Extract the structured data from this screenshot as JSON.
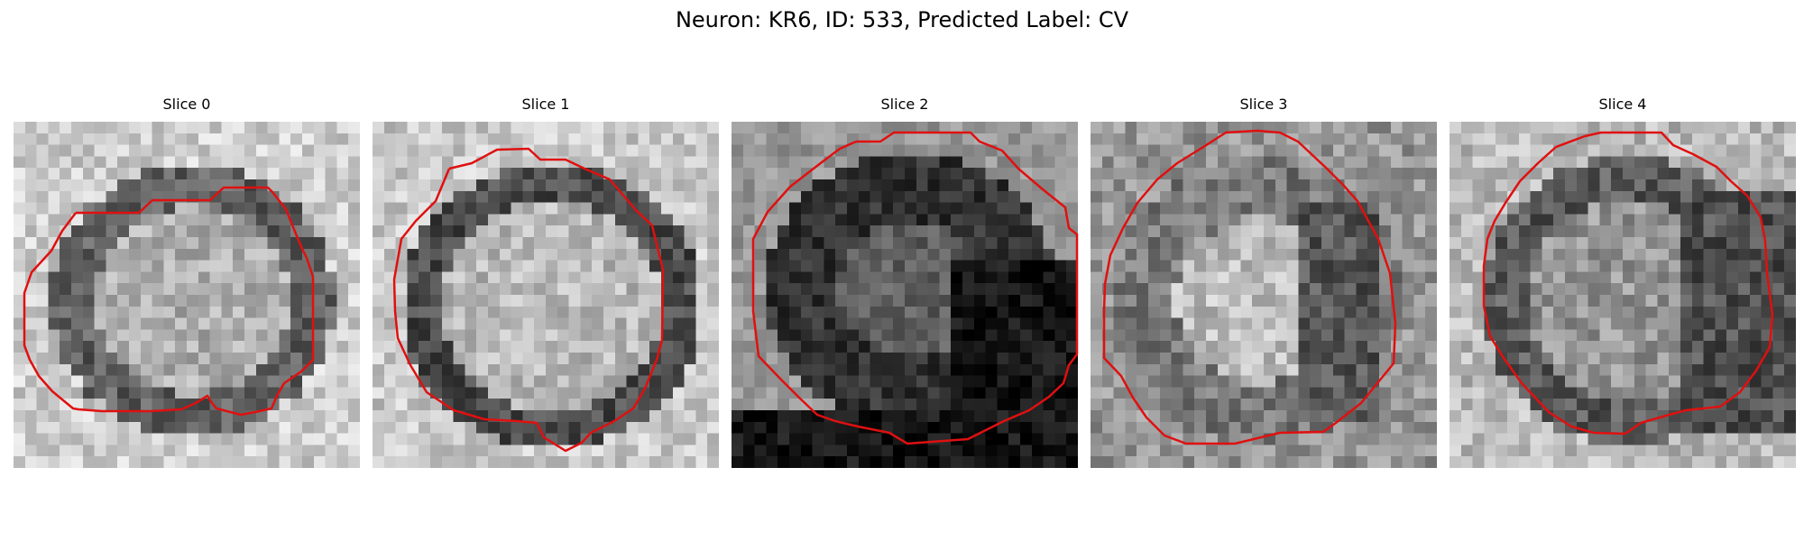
{
  "figure": {
    "title": "Neuron: KR6, ID: 533, Predicted Label: CV"
  },
  "outline_color": "#e01010",
  "slices": [
    {
      "title": "Slice 0",
      "image": "grayscale microscopy patch: bright textured soma with a dark surrounding ring on a light background",
      "brightness": "medium"
    },
    {
      "title": "Slice 1",
      "image": "grayscale microscopy patch: bright soma interior enclosed by a dark ring",
      "brightness": "medium"
    },
    {
      "title": "Slice 2",
      "image": "grayscale microscopy patch: mostly dark interior with a faint grey center",
      "brightness": "dark"
    },
    {
      "title": "Slice 3",
      "image": "grayscale microscopy patch: bright central body with darker edges on the right",
      "brightness": "medium"
    },
    {
      "title": "Slice 4",
      "image": "grayscale microscopy patch: light center, dark patches toward right edge",
      "brightness": "medium"
    }
  ]
}
